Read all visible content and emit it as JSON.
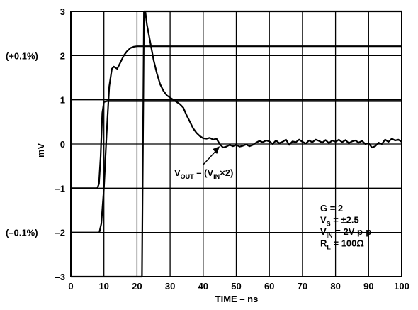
{
  "chart_data": {
    "type": "line",
    "xlabel": "TIME – ns",
    "ylabel": "mV",
    "xlim": [
      0,
      100
    ],
    "ylim": [
      -3,
      3
    ],
    "x_ticks": [
      0,
      10,
      20,
      30,
      40,
      50,
      60,
      70,
      80,
      90,
      100
    ],
    "y_ticks": [
      -3,
      -2,
      -1,
      0,
      1,
      2,
      3
    ],
    "grid": true,
    "percent_labels": [
      {
        "y": 2,
        "text": "(+0.1%)"
      },
      {
        "y": -2,
        "text": "(–0.1%)"
      }
    ],
    "series": [
      {
        "values_x": [
          0,
          7,
          8,
          8.5,
          9,
          9.5,
          10,
          11,
          20,
          60,
          100
        ],
        "values_y": [
          -1,
          -1,
          -1,
          -0.9,
          -0.3,
          0.7,
          0.95,
          0.97,
          0.97,
          0.97,
          0.97
        ]
      },
      {
        "values_x": [
          0,
          8,
          8.6,
          9.2,
          10,
          10.8,
          11.6,
          12.4,
          13,
          14,
          15,
          16,
          17,
          18,
          19,
          20,
          21,
          30,
          60,
          100
        ],
        "values_y": [
          -2,
          -2,
          -2,
          -1.8,
          -1.0,
          0.2,
          1.3,
          1.7,
          1.75,
          1.7,
          1.85,
          2.0,
          2.1,
          2.17,
          2.2,
          2.21,
          2.21,
          2.21,
          2.21,
          2.21
        ]
      },
      {
        "values_x": [
          0,
          21.5,
          21.7,
          21.9,
          22.1,
          22.3,
          22.5,
          100
        ],
        "values_y": [
          -3,
          -3,
          -1,
          1,
          3,
          3,
          3,
          3
        ]
      },
      {
        "values_x": [
          22.5,
          23,
          24,
          25,
          26,
          27,
          28,
          29,
          30,
          31,
          32,
          33,
          34,
          35,
          36,
          37,
          38,
          39,
          40,
          41,
          42,
          43,
          44,
          45,
          46,
          47,
          48,
          49,
          50,
          51,
          52,
          53,
          54,
          55,
          56,
          57,
          58,
          59,
          60,
          61,
          62,
          63,
          64,
          65,
          66,
          67,
          68,
          69,
          70,
          71,
          72,
          73,
          74,
          75,
          76,
          77,
          78,
          79,
          80,
          81,
          82,
          83,
          84,
          85,
          86,
          87,
          88,
          89,
          90,
          91,
          92,
          93,
          94,
          95,
          96,
          97,
          98,
          99,
          100
        ],
        "values_y": [
          3,
          2.7,
          2.3,
          1.9,
          1.6,
          1.35,
          1.2,
          1.1,
          1.05,
          1.0,
          0.95,
          0.9,
          0.82,
          0.65,
          0.5,
          0.35,
          0.25,
          0.18,
          0.13,
          0.12,
          0.14,
          0.1,
          0.12,
          0.0,
          -0.08,
          -0.06,
          -0.02,
          -0.05,
          -0.02,
          -0.06,
          -0.04,
          -0.01,
          -0.05,
          -0.02,
          0.03,
          0.07,
          0.04,
          0.08,
          0.06,
          0.0,
          0.08,
          0.02,
          0.05,
          0.1,
          -0.02,
          0.06,
          0.04,
          0.1,
          0.05,
          0.01,
          0.08,
          0.04,
          0.1,
          0.07,
          0.03,
          0.09,
          0.02,
          0.08,
          0.05,
          0.1,
          0.04,
          0.09,
          0.02,
          0.06,
          0.08,
          0.03,
          0.07,
          0.0,
          0.02,
          -0.08,
          -0.05,
          0.03,
          0.0,
          0.1,
          0.05,
          0.12,
          0.08,
          0.1,
          0.05
        ]
      }
    ],
    "annotations": {
      "vout": {
        "main1": "V",
        "sub1": "OUT",
        "main2": " – (V",
        "sub2": "IN",
        "main3": "×2)",
        "arrow_to": [
          45,
          -0.05
        ]
      },
      "conditions": [
        {
          "main": "G = 2",
          "sub": "",
          "rest": ""
        },
        {
          "main": "V",
          "sub": "S",
          "rest": " = ±2.5"
        },
        {
          "main": "V",
          "sub": "IN",
          "rest": " = 2V p-p"
        },
        {
          "main": "R",
          "sub": "L",
          "rest": " = 100Ω"
        }
      ]
    }
  }
}
